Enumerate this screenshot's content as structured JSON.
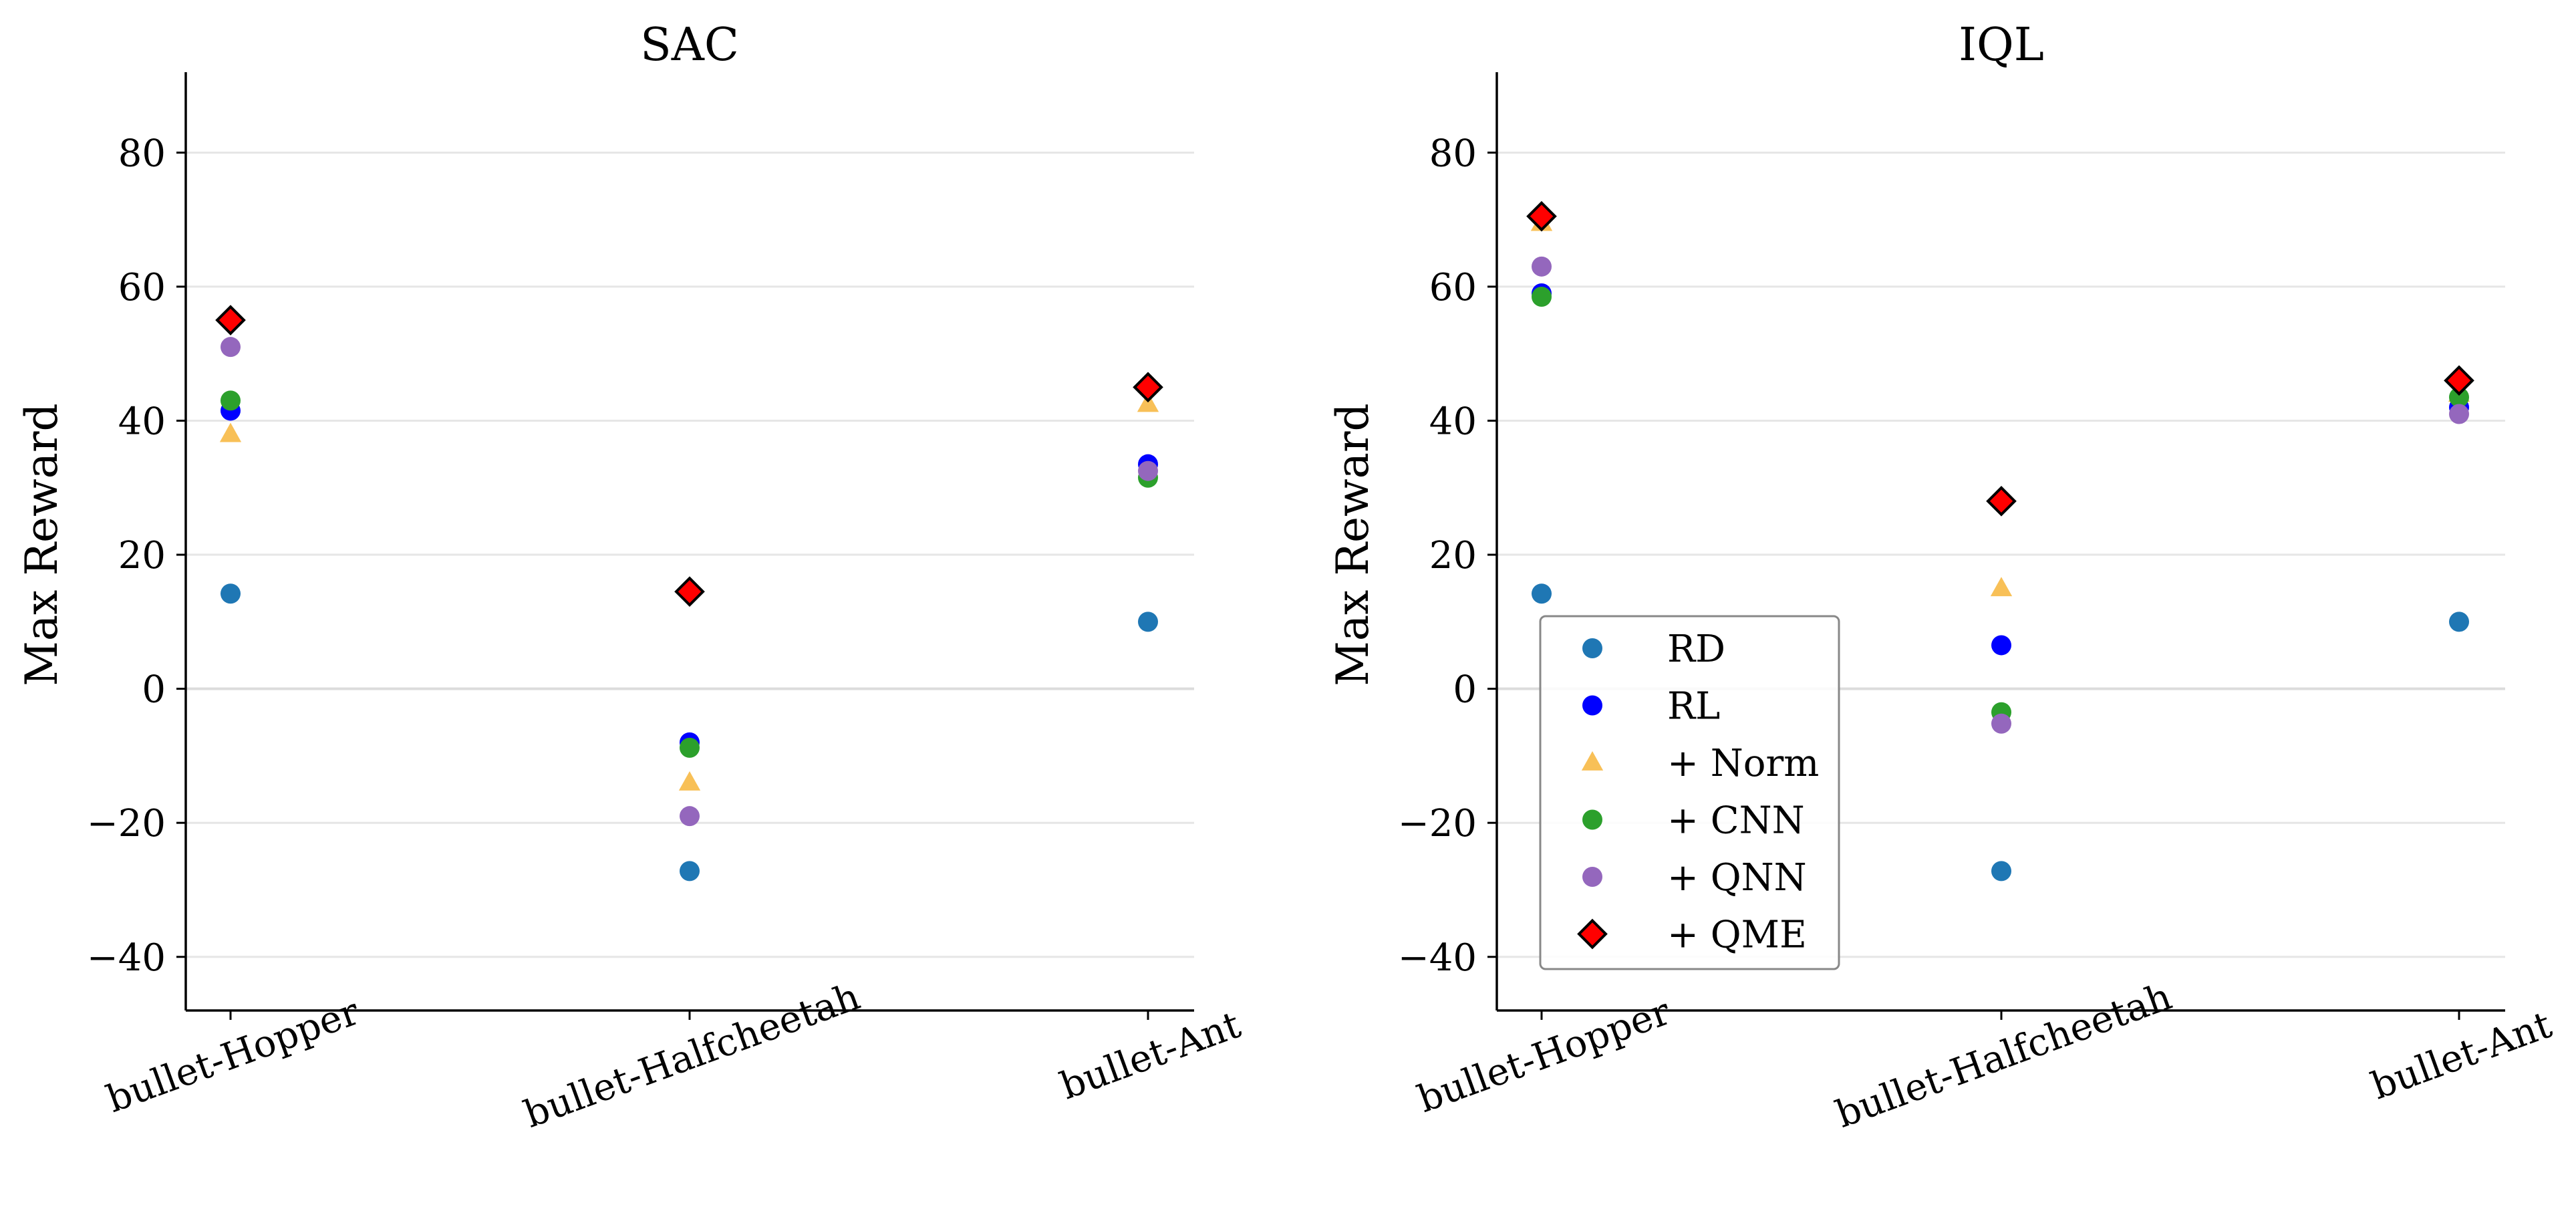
{
  "figure": {
    "background": "#ffffff",
    "grid": "horizontal",
    "legend_location": "lower-left of IQL panel"
  },
  "series_styles": [
    {
      "name": "RD",
      "marker": "circle",
      "color": "#1f77b4"
    },
    {
      "name": "RL",
      "marker": "circle",
      "color": "#0000ff"
    },
    {
      "name": "+ Norm",
      "marker": "triangle",
      "color": "#f7b53a"
    },
    {
      "name": "+ CNN",
      "marker": "circle",
      "color": "#2ca02c"
    },
    {
      "name": "+ QNN",
      "marker": "circle",
      "color": "#9467bd"
    },
    {
      "name": "+ QME",
      "marker": "diamond",
      "color": "#ff0000",
      "edge": "#000000"
    }
  ],
  "chart_data": [
    {
      "type": "scatter",
      "title": "SAC",
      "xlabel": "",
      "ylabel": "Max Reward",
      "categories": [
        "bullet-Hopper",
        "bullet-Halfcheetah",
        "bullet-Ant"
      ],
      "ylim": [
        -48,
        92
      ],
      "yticks": [
        80,
        60,
        40,
        20,
        0,
        -20,
        -40
      ],
      "ytick_labels": [
        "80",
        "60",
        "40",
        "20",
        "0",
        "−20",
        "−40"
      ],
      "series": [
        {
          "name": "RD",
          "values": [
            14.2,
            -27.2,
            10.0
          ]
        },
        {
          "name": "RL",
          "values": [
            41.5,
            -8.0,
            33.5
          ]
        },
        {
          "name": "+ Norm",
          "values": [
            38.0,
            -14.0,
            42.5
          ]
        },
        {
          "name": "+ CNN",
          "values": [
            43.0,
            -8.8,
            31.5
          ]
        },
        {
          "name": "+ QNN",
          "values": [
            51.0,
            -19.0,
            32.5
          ]
        },
        {
          "name": "+ QME",
          "values": [
            55.0,
            14.5,
            45.0
          ]
        }
      ]
    },
    {
      "type": "scatter",
      "title": "IQL",
      "xlabel": "",
      "ylabel": "Max Reward",
      "categories": [
        "bullet-Hopper",
        "bullet-Halfcheetah",
        "bullet-Ant"
      ],
      "ylim": [
        -48,
        92
      ],
      "yticks": [
        80,
        60,
        40,
        20,
        0,
        -20,
        -40
      ],
      "ytick_labels": [
        "80",
        "60",
        "40",
        "20",
        "0",
        "−20",
        "−40"
      ],
      "series": [
        {
          "name": "RD",
          "values": [
            14.2,
            -27.2,
            10.0
          ]
        },
        {
          "name": "RL",
          "values": [
            59.0,
            6.5,
            42.0
          ]
        },
        {
          "name": "+ Norm",
          "values": [
            69.5,
            15.0,
            44.0
          ]
        },
        {
          "name": "+ CNN",
          "values": [
            58.5,
            -3.5,
            43.5
          ]
        },
        {
          "name": "+ QNN",
          "values": [
            63.0,
            -5.2,
            41.0
          ]
        },
        {
          "name": "+ QME",
          "values": [
            70.5,
            28.0,
            46.0
          ]
        }
      ]
    }
  ],
  "legend": {
    "entries": [
      "RD",
      "RL",
      "+ Norm",
      "+ CNN",
      "+ QNN",
      "+ QME"
    ]
  }
}
